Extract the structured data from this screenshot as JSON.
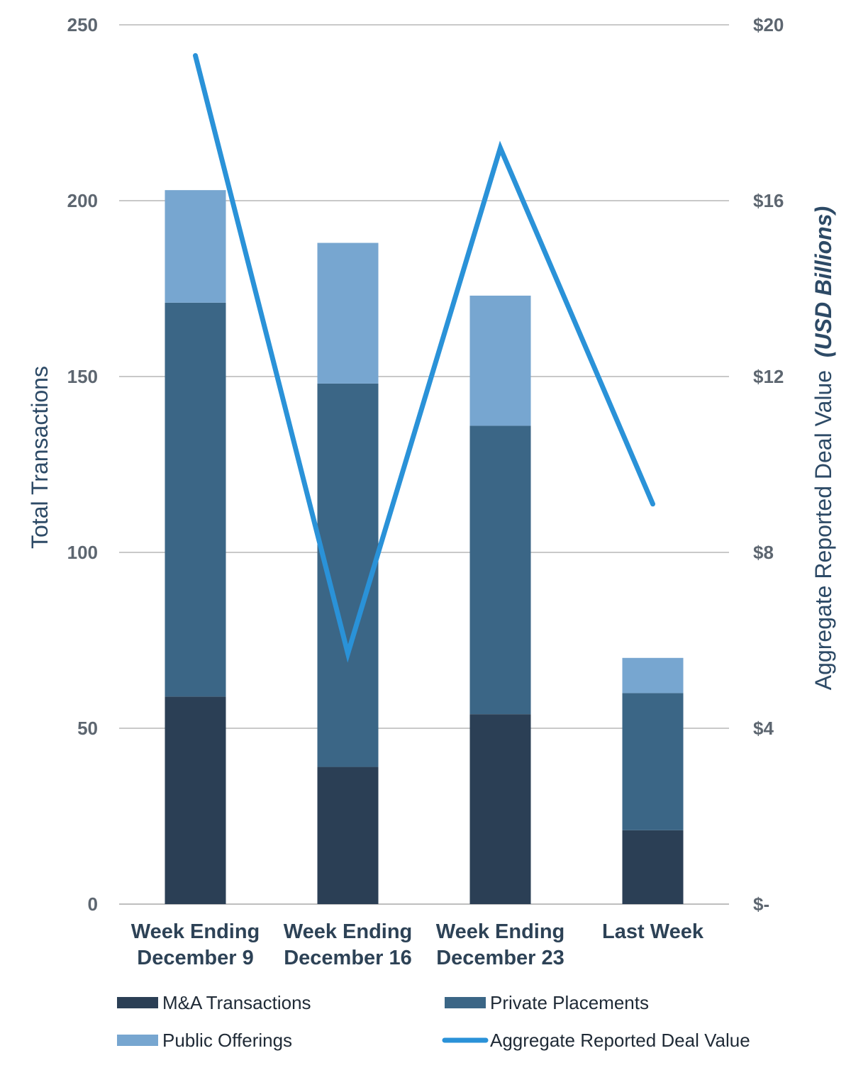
{
  "chart_data": {
    "type": "bar",
    "stacked": true,
    "categories": [
      [
        "Week Ending",
        "December 9"
      ],
      [
        "Week Ending",
        "December 16"
      ],
      [
        "Week Ending",
        "December 23"
      ],
      [
        "Last Week"
      ]
    ],
    "series": [
      {
        "name": "M&A Transactions",
        "values": [
          59,
          39,
          54,
          21
        ],
        "color": "#2b3f55"
      },
      {
        "name": "Private Placements",
        "values": [
          112,
          109,
          82,
          39
        ],
        "color": "#3b6686"
      },
      {
        "name": "Public Offerings",
        "values": [
          32,
          40,
          37,
          10
        ],
        "color": "#77a6d0"
      }
    ],
    "line_series": {
      "name": "Aggregate Reported Deal Value",
      "values": [
        19.3,
        5.7,
        17.2,
        9.1
      ],
      "color": "#2a92d8",
      "axis": "right"
    },
    "ylabel": "Total Transactions",
    "ylabel_right": [
      "Aggregate Reported Deal Value",
      "(USD Billions)"
    ],
    "ylim": [
      0,
      250
    ],
    "yticks": [
      0,
      50,
      100,
      150,
      200,
      250
    ],
    "ylim_right": [
      0,
      20
    ],
    "yticks_right": [
      "$-",
      "$4",
      "$8",
      "$12",
      "$16",
      "$20"
    ],
    "grid": true,
    "legend_position": "bottom",
    "legend": [
      {
        "label": "M&A Transactions",
        "kind": "box",
        "color": "#2b3f55"
      },
      {
        "label": "Private Placements",
        "kind": "box",
        "color": "#3b6686"
      },
      {
        "label": "Public Offerings",
        "kind": "box",
        "color": "#77a6d0"
      },
      {
        "label": "Aggregate Reported Deal Value",
        "kind": "line",
        "color": "#2a92d8"
      }
    ]
  }
}
